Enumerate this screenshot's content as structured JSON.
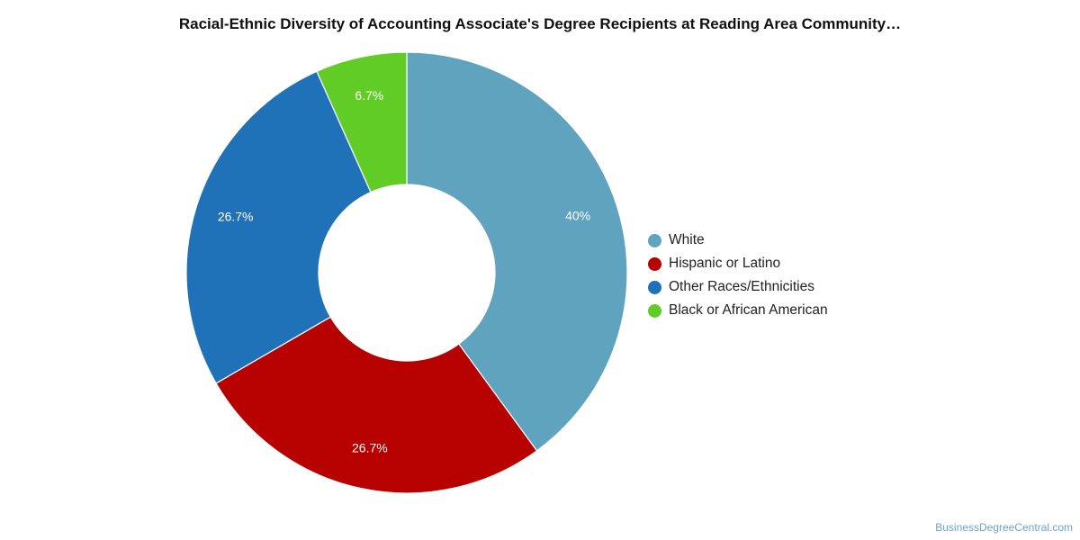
{
  "title": "Racial-Ethnic Diversity of Accounting Associate's Degree Recipients at Reading Area Community…",
  "credit": "BusinessDegreeCentral.com",
  "chart_data": {
    "type": "pie",
    "donut": true,
    "title": "Racial-Ethnic Diversity of Accounting Associate's Degree Recipients at Reading Area Community…",
    "legend_position": "right",
    "slices": [
      {
        "label": "White",
        "value": 40,
        "display": "40%",
        "color": "#5fa3bf"
      },
      {
        "label": "Hispanic or Latino",
        "value": 26.7,
        "display": "26.7%",
        "color": "#b70000"
      },
      {
        "label": "Other Races/Ethnicities",
        "value": 26.7,
        "display": "26.7%",
        "color": "#1f72b8"
      },
      {
        "label": "Black or African American",
        "value": 6.7,
        "display": "6.7%",
        "color": "#62cc26"
      }
    ]
  }
}
